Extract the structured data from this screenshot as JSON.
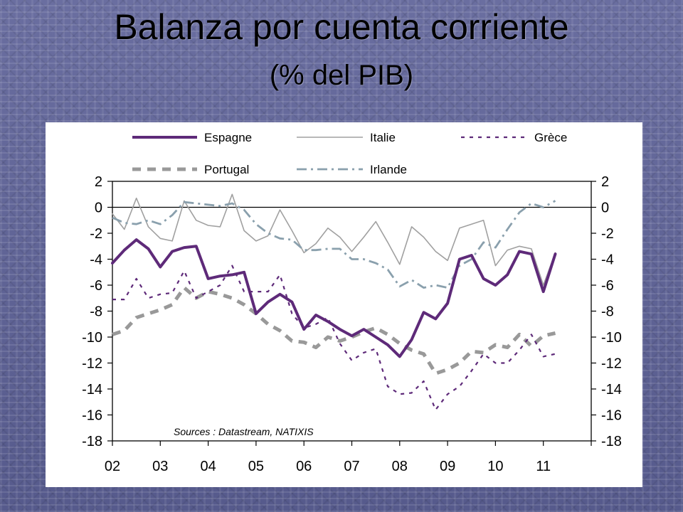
{
  "slide": {
    "title": "Balanza por cuenta corriente",
    "subtitle": "(% del PIB)"
  },
  "chart_data": {
    "type": "line",
    "title": "Balanza por cuenta corriente",
    "subtitle": "(% del PIB)",
    "source": "Sources : Datastream, NATIXIS",
    "xlabel": "",
    "ylabel": "",
    "xlim": [
      2002,
      2012
    ],
    "ylim": [
      -18,
      2
    ],
    "yticks": [
      2,
      0,
      -2,
      -4,
      -6,
      -8,
      -10,
      -12,
      -14,
      -16,
      -18
    ],
    "xtick_labels": [
      "02",
      "03",
      "04",
      "05",
      "06",
      "07",
      "08",
      "09",
      "10",
      "11"
    ],
    "legend_position": "top",
    "zero_line": true,
    "series": [
      {
        "name": "Espagne",
        "color": "#5e2a79",
        "style": "solid-thick",
        "x": [
          2002.0,
          2002.25,
          2002.5,
          2002.75,
          2003.0,
          2003.25,
          2003.5,
          2003.75,
          2004.0,
          2004.25,
          2004.5,
          2004.75,
          2005.0,
          2005.25,
          2005.5,
          2005.75,
          2006.0,
          2006.25,
          2006.5,
          2006.75,
          2007.0,
          2007.25,
          2007.5,
          2007.75,
          2008.0,
          2008.25,
          2008.5,
          2008.75,
          2009.0,
          2009.25,
          2009.5,
          2009.75,
          2010.0,
          2010.25,
          2010.5,
          2010.75,
          2011.0,
          2011.25
        ],
        "y": [
          -4.3,
          -3.3,
          -2.5,
          -3.2,
          -4.6,
          -3.4,
          -3.1,
          -3.0,
          -5.5,
          -5.3,
          -5.2,
          -5.0,
          -8.2,
          -7.3,
          -6.7,
          -7.3,
          -9.4,
          -8.3,
          -8.8,
          -9.4,
          -9.9,
          -9.4,
          -10.0,
          -10.6,
          -11.5,
          -10.2,
          -8.1,
          -8.6,
          -7.4,
          -4.0,
          -3.7,
          -5.5,
          -6.0,
          -5.2,
          -3.4,
          -3.6,
          -6.5,
          -3.6
        ]
      },
      {
        "name": "Italie",
        "color": "#a0a0a0",
        "style": "solid-thin",
        "x": [
          2002.0,
          2002.25,
          2002.5,
          2002.75,
          2003.0,
          2003.25,
          2003.5,
          2003.75,
          2004.0,
          2004.25,
          2004.5,
          2004.75,
          2005.0,
          2005.25,
          2005.5,
          2005.75,
          2006.0,
          2006.25,
          2006.5,
          2006.75,
          2007.0,
          2007.25,
          2007.5,
          2007.75,
          2008.0,
          2008.25,
          2008.5,
          2008.75,
          2009.0,
          2009.25,
          2009.5,
          2009.75,
          2010.0,
          2010.25,
          2010.5,
          2010.75,
          2011.0,
          2011.25
        ],
        "y": [
          -0.5,
          -1.7,
          0.7,
          -1.5,
          -2.4,
          -2.6,
          0.5,
          -1.0,
          -1.4,
          -1.5,
          1.0,
          -1.8,
          -2.6,
          -2.2,
          -0.2,
          -1.8,
          -3.5,
          -2.8,
          -1.6,
          -2.3,
          -3.4,
          -2.3,
          -1.1,
          -2.7,
          -4.4,
          -1.5,
          -2.3,
          -3.4,
          -4.1,
          -1.6,
          -1.3,
          -1.0,
          -4.5,
          -3.3,
          -3.0,
          -3.2,
          -6.0,
          -3.5
        ]
      },
      {
        "name": "Grèce",
        "color": "#5e2a79",
        "style": "dotted",
        "x": [
          2002.0,
          2002.25,
          2002.5,
          2002.75,
          2003.0,
          2003.25,
          2003.5,
          2003.75,
          2004.0,
          2004.25,
          2004.5,
          2004.75,
          2005.0,
          2005.25,
          2005.5,
          2005.75,
          2006.0,
          2006.25,
          2006.5,
          2006.75,
          2007.0,
          2007.25,
          2007.5,
          2007.75,
          2008.0,
          2008.25,
          2008.5,
          2008.75,
          2009.0,
          2009.25,
          2009.5,
          2009.75,
          2010.0,
          2010.25,
          2010.5,
          2010.75,
          2011.0,
          2011.25
        ],
        "y": [
          -7.1,
          -7.1,
          -5.5,
          -7.0,
          -6.7,
          -6.6,
          -4.9,
          -7.0,
          -6.5,
          -6.0,
          -4.5,
          -6.5,
          -6.5,
          -6.5,
          -5.2,
          -8.2,
          -9.3,
          -9.0,
          -8.5,
          -10.5,
          -11.8,
          -11.2,
          -10.9,
          -13.8,
          -14.4,
          -14.3,
          -13.4,
          -15.6,
          -14.4,
          -13.8,
          -12.6,
          -11.3,
          -12.0,
          -12.0,
          -11.0,
          -9.8,
          -11.5,
          -11.3
        ]
      },
      {
        "name": "Portugal",
        "color": "#999999",
        "style": "dashed-thick",
        "x": [
          2002.0,
          2002.25,
          2002.5,
          2002.75,
          2003.0,
          2003.25,
          2003.5,
          2003.75,
          2004.0,
          2004.25,
          2004.5,
          2004.75,
          2005.0,
          2005.25,
          2005.5,
          2005.75,
          2006.0,
          2006.25,
          2006.5,
          2006.75,
          2007.0,
          2007.25,
          2007.5,
          2007.75,
          2008.0,
          2008.25,
          2008.5,
          2008.75,
          2009.0,
          2009.25,
          2009.5,
          2009.75,
          2010.0,
          2010.25,
          2010.5,
          2010.75,
          2011.0,
          2011.25
        ],
        "y": [
          -9.8,
          -9.5,
          -8.5,
          -8.2,
          -7.9,
          -7.5,
          -6.2,
          -7.0,
          -6.5,
          -6.7,
          -7.0,
          -7.5,
          -8.2,
          -9.0,
          -9.5,
          -10.3,
          -10.4,
          -10.8,
          -10.0,
          -10.3,
          -10.0,
          -9.6,
          -9.3,
          -9.8,
          -10.5,
          -11.0,
          -11.3,
          -12.8,
          -12.5,
          -12.0,
          -11.1,
          -11.2,
          -10.6,
          -10.8,
          -9.8,
          -10.7,
          -9.9,
          -9.7
        ]
      },
      {
        "name": "Irlande",
        "color": "#8aa0ad",
        "style": "dash-dot",
        "x": [
          2002.0,
          2002.25,
          2002.5,
          2002.75,
          2003.0,
          2003.25,
          2003.5,
          2003.75,
          2004.0,
          2004.25,
          2004.5,
          2004.75,
          2005.0,
          2005.25,
          2005.5,
          2005.75,
          2006.0,
          2006.25,
          2006.5,
          2006.75,
          2007.0,
          2007.25,
          2007.5,
          2007.75,
          2008.0,
          2008.25,
          2008.5,
          2008.75,
          2009.0,
          2009.25,
          2009.5,
          2009.75,
          2010.0,
          2010.25,
          2010.5,
          2010.75,
          2011.0,
          2011.25
        ],
        "y": [
          -0.8,
          -1.2,
          -1.3,
          -1.0,
          -1.3,
          -0.6,
          0.4,
          0.3,
          0.2,
          0.1,
          0.3,
          -0.2,
          -1.3,
          -2.0,
          -2.4,
          -2.5,
          -3.3,
          -3.3,
          -3.2,
          -3.2,
          -4.0,
          -4.0,
          -4.3,
          -4.8,
          -6.1,
          -5.6,
          -6.2,
          -6.0,
          -6.2,
          -4.5,
          -4.0,
          -2.7,
          -3.1,
          -1.7,
          -0.4,
          0.3,
          0.0,
          0.5
        ]
      }
    ]
  }
}
